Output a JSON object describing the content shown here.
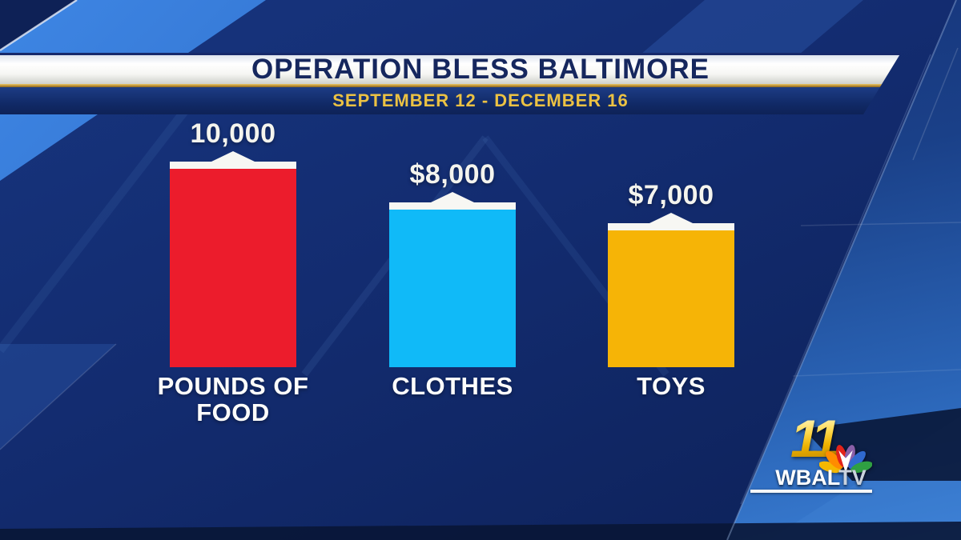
{
  "chart_data": {
    "type": "bar",
    "title": "OPERATION BLESS BALTIMORE",
    "subtitle": "SEPTEMBER 12 - DECEMBER 16",
    "categories": [
      "POUNDS OF FOOD",
      "CLOTHES",
      "TOYS"
    ],
    "category_lines": [
      [
        "POUNDS OF",
        "FOOD"
      ],
      [
        "CLOTHES"
      ],
      [
        "TOYS"
      ]
    ],
    "values": [
      10000,
      8000,
      7000
    ],
    "value_labels": [
      "10,000",
      "$8,000",
      "$7,000"
    ],
    "bar_colors": [
      "#ec1c2c",
      "#10baf8",
      "#f6b406"
    ],
    "ylim": [
      0,
      10000
    ],
    "grid": false,
    "legend": false
  },
  "logo": {
    "channel": "11",
    "callsign": "WBAL",
    "suffix": "TV"
  },
  "colors": {
    "banner_gold_rule": "#c69a3e",
    "subtitle_gold": "#ecc243",
    "title_navy": "#16275e",
    "bar_cap_white": "#f7f7f3",
    "background_navy": "#132c70"
  }
}
